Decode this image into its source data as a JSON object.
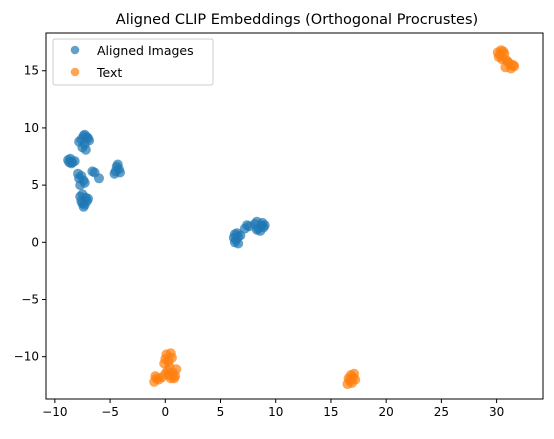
{
  "chart_data": {
    "type": "scatter",
    "title": "Aligned CLIP Embeddings (Orthogonal Procrustes)",
    "xlabel": "",
    "ylabel": "",
    "xlim": [
      -10.8,
      34.2
    ],
    "ylim": [
      -13.7,
      18.3
    ],
    "xticks": [
      -10,
      -5,
      0,
      5,
      10,
      15,
      20,
      25,
      30
    ],
    "yticks": [
      -10,
      -5,
      0,
      5,
      10,
      15
    ],
    "grid": false,
    "legend_position": "upper-left",
    "series": [
      {
        "name": "Aligned Images",
        "color": "#1f77b4",
        "points": [
          [
            -7.4,
            9.3
          ],
          [
            -7.1,
            9.2
          ],
          [
            -7.6,
            9.0
          ],
          [
            -6.9,
            8.9
          ],
          [
            -7.3,
            8.6
          ],
          [
            -7.5,
            8.3
          ],
          [
            -7.2,
            8.1
          ],
          [
            -7.0,
            9.1
          ],
          [
            -7.8,
            8.8
          ],
          [
            -7.3,
            9.4
          ],
          [
            -8.6,
            7.3
          ],
          [
            -8.4,
            7.0
          ],
          [
            -8.8,
            7.2
          ],
          [
            -8.5,
            6.9
          ],
          [
            -8.2,
            7.1
          ],
          [
            -8.7,
            7.0
          ],
          [
            -4.4,
            6.6
          ],
          [
            -4.5,
            6.2
          ],
          [
            -4.2,
            6.4
          ],
          [
            -4.6,
            6.0
          ],
          [
            -4.3,
            6.8
          ],
          [
            -4.1,
            6.1
          ],
          [
            -6.4,
            6.1
          ],
          [
            -6.0,
            5.6
          ],
          [
            -6.6,
            6.2
          ],
          [
            -7.9,
            6.0
          ],
          [
            -7.6,
            5.8
          ],
          [
            -7.4,
            5.4
          ],
          [
            -7.7,
            5.0
          ],
          [
            -7.3,
            5.2
          ],
          [
            -7.8,
            5.6
          ],
          [
            -7.5,
            4.2
          ],
          [
            -7.2,
            3.9
          ],
          [
            -7.6,
            3.6
          ],
          [
            -7.3,
            3.3
          ],
          [
            -7.1,
            3.6
          ],
          [
            -7.7,
            4.0
          ],
          [
            -7.4,
            3.1
          ],
          [
            -7.0,
            3.8
          ],
          [
            -7.5,
            3.4
          ],
          [
            6.3,
            0.7
          ],
          [
            6.6,
            0.5
          ],
          [
            6.4,
            0.2
          ],
          [
            6.6,
            -0.1
          ],
          [
            6.3,
            0.0
          ],
          [
            6.8,
            0.6
          ],
          [
            6.5,
            0.8
          ],
          [
            6.2,
            0.4
          ],
          [
            7.4,
            1.5
          ],
          [
            7.2,
            1.2
          ],
          [
            7.6,
            1.4
          ],
          [
            8.3,
            1.8
          ],
          [
            8.1,
            1.6
          ],
          [
            8.4,
            1.2
          ],
          [
            8.7,
            1.5
          ],
          [
            8.9,
            1.3
          ],
          [
            8.6,
            1.0
          ],
          [
            8.3,
            1.1
          ],
          [
            9.0,
            1.5
          ],
          [
            8.8,
            1.7
          ]
        ]
      },
      {
        "name": "Text",
        "color": "#ff7f0e",
        "points": [
          [
            0.1,
            -9.8
          ],
          [
            0.5,
            -9.7
          ],
          [
            0.0,
            -10.2
          ],
          [
            0.3,
            -10.4
          ],
          [
            0.6,
            -10.1
          ],
          [
            -0.1,
            -10.6
          ],
          [
            0.4,
            -10.9
          ],
          [
            0.2,
            -11.2
          ],
          [
            0.7,
            -11.4
          ],
          [
            1.0,
            -11.1
          ],
          [
            0.9,
            -11.7
          ],
          [
            0.5,
            -11.9
          ],
          [
            0.0,
            -11.5
          ],
          [
            -0.3,
            -11.8
          ],
          [
            0.3,
            -11.6
          ],
          [
            -0.8,
            -11.9
          ],
          [
            -1.0,
            -12.2
          ],
          [
            -0.6,
            -12.0
          ],
          [
            -0.9,
            -11.7
          ],
          [
            0.8,
            -11.9
          ],
          [
            16.8,
            -11.6
          ],
          [
            17.1,
            -11.5
          ],
          [
            16.6,
            -11.9
          ],
          [
            17.2,
            -12.0
          ],
          [
            16.9,
            -12.3
          ],
          [
            16.5,
            -12.4
          ],
          [
            17.0,
            -11.8
          ],
          [
            16.7,
            -12.1
          ],
          [
            30.1,
            16.6
          ],
          [
            30.4,
            16.8
          ],
          [
            30.7,
            16.5
          ],
          [
            30.2,
            16.2
          ],
          [
            30.5,
            16.0
          ],
          [
            30.9,
            15.9
          ],
          [
            31.2,
            15.6
          ],
          [
            30.8,
            15.3
          ],
          [
            31.5,
            15.5
          ],
          [
            31.3,
            15.2
          ],
          [
            31.0,
            15.8
          ],
          [
            30.3,
            16.4
          ],
          [
            31.6,
            15.4
          ],
          [
            30.6,
            16.7
          ]
        ]
      }
    ]
  }
}
